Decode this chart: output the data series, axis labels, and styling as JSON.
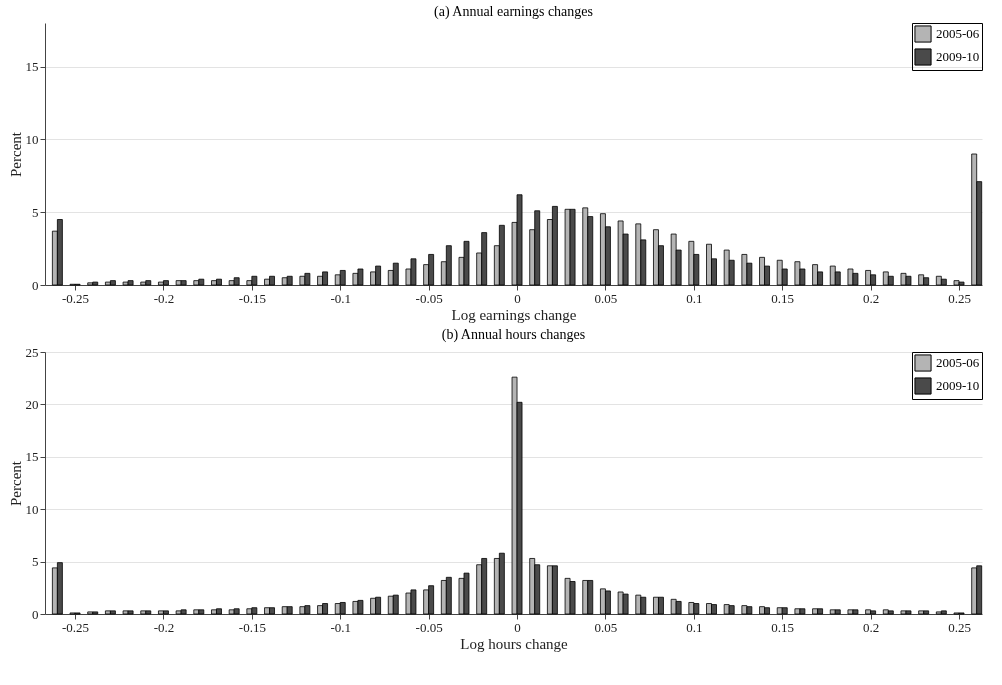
{
  "chart_data": [
    {
      "type": "bar",
      "title": "(a) Annual earnings changes",
      "xlabel": "Log earnings change",
      "ylabel": "Percent",
      "x": [
        -0.26,
        -0.25,
        -0.24,
        -0.23,
        -0.22,
        -0.21,
        -0.2,
        -0.19,
        -0.18,
        -0.17,
        -0.16,
        -0.15,
        -0.14,
        -0.13,
        -0.12,
        -0.11,
        -0.1,
        -0.09,
        -0.08,
        -0.07,
        -0.06,
        -0.05,
        -0.04,
        -0.03,
        -0.02,
        -0.01,
        0,
        0.01,
        0.02,
        0.03,
        0.04,
        0.05,
        0.06,
        0.07,
        0.08,
        0.09,
        0.1,
        0.11,
        0.12,
        0.13,
        0.14,
        0.15,
        0.16,
        0.17,
        0.18,
        0.19,
        0.2,
        0.21,
        0.22,
        0.23,
        0.24,
        0.25,
        0.26
      ],
      "series": [
        {
          "name": "2005-06",
          "color": "#b4b4b4",
          "values": [
            3.7,
            0.05,
            0.15,
            0.2,
            0.2,
            0.2,
            0.2,
            0.3,
            0.3,
            0.3,
            0.3,
            0.3,
            0.4,
            0.5,
            0.6,
            0.6,
            0.7,
            0.8,
            0.9,
            1.0,
            1.1,
            1.4,
            1.6,
            1.9,
            2.2,
            2.7,
            4.3,
            3.8,
            4.5,
            5.2,
            5.3,
            4.9,
            4.4,
            4.2,
            3.8,
            3.5,
            3.0,
            2.8,
            2.4,
            2.1,
            1.9,
            1.7,
            1.6,
            1.4,
            1.3,
            1.1,
            1.0,
            0.9,
            0.8,
            0.7,
            0.6,
            0.3,
            9.0
          ]
        },
        {
          "name": "2009-10",
          "color": "#4a4a4a",
          "values": [
            4.5,
            0.05,
            0.2,
            0.3,
            0.3,
            0.3,
            0.3,
            0.3,
            0.4,
            0.4,
            0.5,
            0.6,
            0.6,
            0.6,
            0.8,
            0.9,
            1.0,
            1.1,
            1.3,
            1.5,
            1.8,
            2.1,
            2.7,
            3.0,
            3.6,
            4.1,
            6.2,
            5.1,
            5.4,
            5.2,
            4.7,
            4.0,
            3.5,
            3.1,
            2.7,
            2.4,
            2.1,
            1.8,
            1.7,
            1.5,
            1.3,
            1.1,
            1.1,
            0.9,
            0.9,
            0.8,
            0.7,
            0.6,
            0.6,
            0.5,
            0.4,
            0.2,
            7.1
          ]
        }
      ],
      "xlim": [
        -0.267,
        0.263
      ],
      "ylim": [
        0,
        18
      ],
      "xticks": [
        -0.25,
        -0.2,
        -0.15,
        -0.1,
        -0.05,
        0,
        0.05,
        0.1,
        0.15,
        0.2,
        0.25
      ],
      "yticks": [
        0,
        5,
        10,
        15
      ],
      "grid": "y",
      "legend": "top right"
    },
    {
      "type": "bar",
      "title": "(b) Annual hours changes",
      "xlabel": "Log hours change",
      "ylabel": "Percent",
      "x": [
        -0.26,
        -0.25,
        -0.24,
        -0.23,
        -0.22,
        -0.21,
        -0.2,
        -0.19,
        -0.18,
        -0.17,
        -0.16,
        -0.15,
        -0.14,
        -0.13,
        -0.12,
        -0.11,
        -0.1,
        -0.09,
        -0.08,
        -0.07,
        -0.06,
        -0.05,
        -0.04,
        -0.03,
        -0.02,
        -0.01,
        0,
        0.01,
        0.02,
        0.03,
        0.04,
        0.05,
        0.06,
        0.07,
        0.08,
        0.09,
        0.1,
        0.11,
        0.12,
        0.13,
        0.14,
        0.15,
        0.16,
        0.17,
        0.18,
        0.19,
        0.2,
        0.21,
        0.22,
        0.23,
        0.24,
        0.25,
        0.26
      ],
      "series": [
        {
          "name": "2005-06",
          "color": "#b4b4b4",
          "values": [
            4.4,
            0.1,
            0.2,
            0.3,
            0.3,
            0.3,
            0.3,
            0.3,
            0.4,
            0.4,
            0.4,
            0.5,
            0.6,
            0.7,
            0.7,
            0.8,
            1.0,
            1.2,
            1.5,
            1.7,
            2.0,
            2.3,
            3.2,
            3.4,
            4.7,
            5.3,
            22.6,
            5.3,
            4.6,
            3.4,
            3.2,
            2.4,
            2.1,
            1.8,
            1.6,
            1.4,
            1.1,
            1.0,
            0.9,
            0.8,
            0.7,
            0.6,
            0.5,
            0.5,
            0.4,
            0.4,
            0.4,
            0.4,
            0.3,
            0.3,
            0.2,
            0.1,
            4.4
          ]
        },
        {
          "name": "2009-10",
          "color": "#4a4a4a",
          "values": [
            4.9,
            0.1,
            0.2,
            0.3,
            0.3,
            0.3,
            0.3,
            0.4,
            0.4,
            0.5,
            0.5,
            0.6,
            0.6,
            0.7,
            0.8,
            1.0,
            1.1,
            1.3,
            1.6,
            1.8,
            2.3,
            2.7,
            3.5,
            3.9,
            5.3,
            5.8,
            20.2,
            4.7,
            4.6,
            3.1,
            3.2,
            2.2,
            1.9,
            1.6,
            1.6,
            1.2,
            1.0,
            0.9,
            0.8,
            0.7,
            0.6,
            0.6,
            0.5,
            0.5,
            0.4,
            0.4,
            0.3,
            0.3,
            0.3,
            0.3,
            0.3,
            0.1,
            4.6
          ]
        }
      ],
      "xlim": [
        -0.267,
        0.263
      ],
      "ylim": [
        0,
        25
      ],
      "xticks": [
        -0.25,
        -0.2,
        -0.15,
        -0.1,
        -0.05,
        0,
        0.05,
        0.1,
        0.15,
        0.2,
        0.25
      ],
      "yticks": [
        0,
        5,
        10,
        15,
        20,
        25
      ],
      "grid": "y",
      "legend": "top right"
    }
  ]
}
